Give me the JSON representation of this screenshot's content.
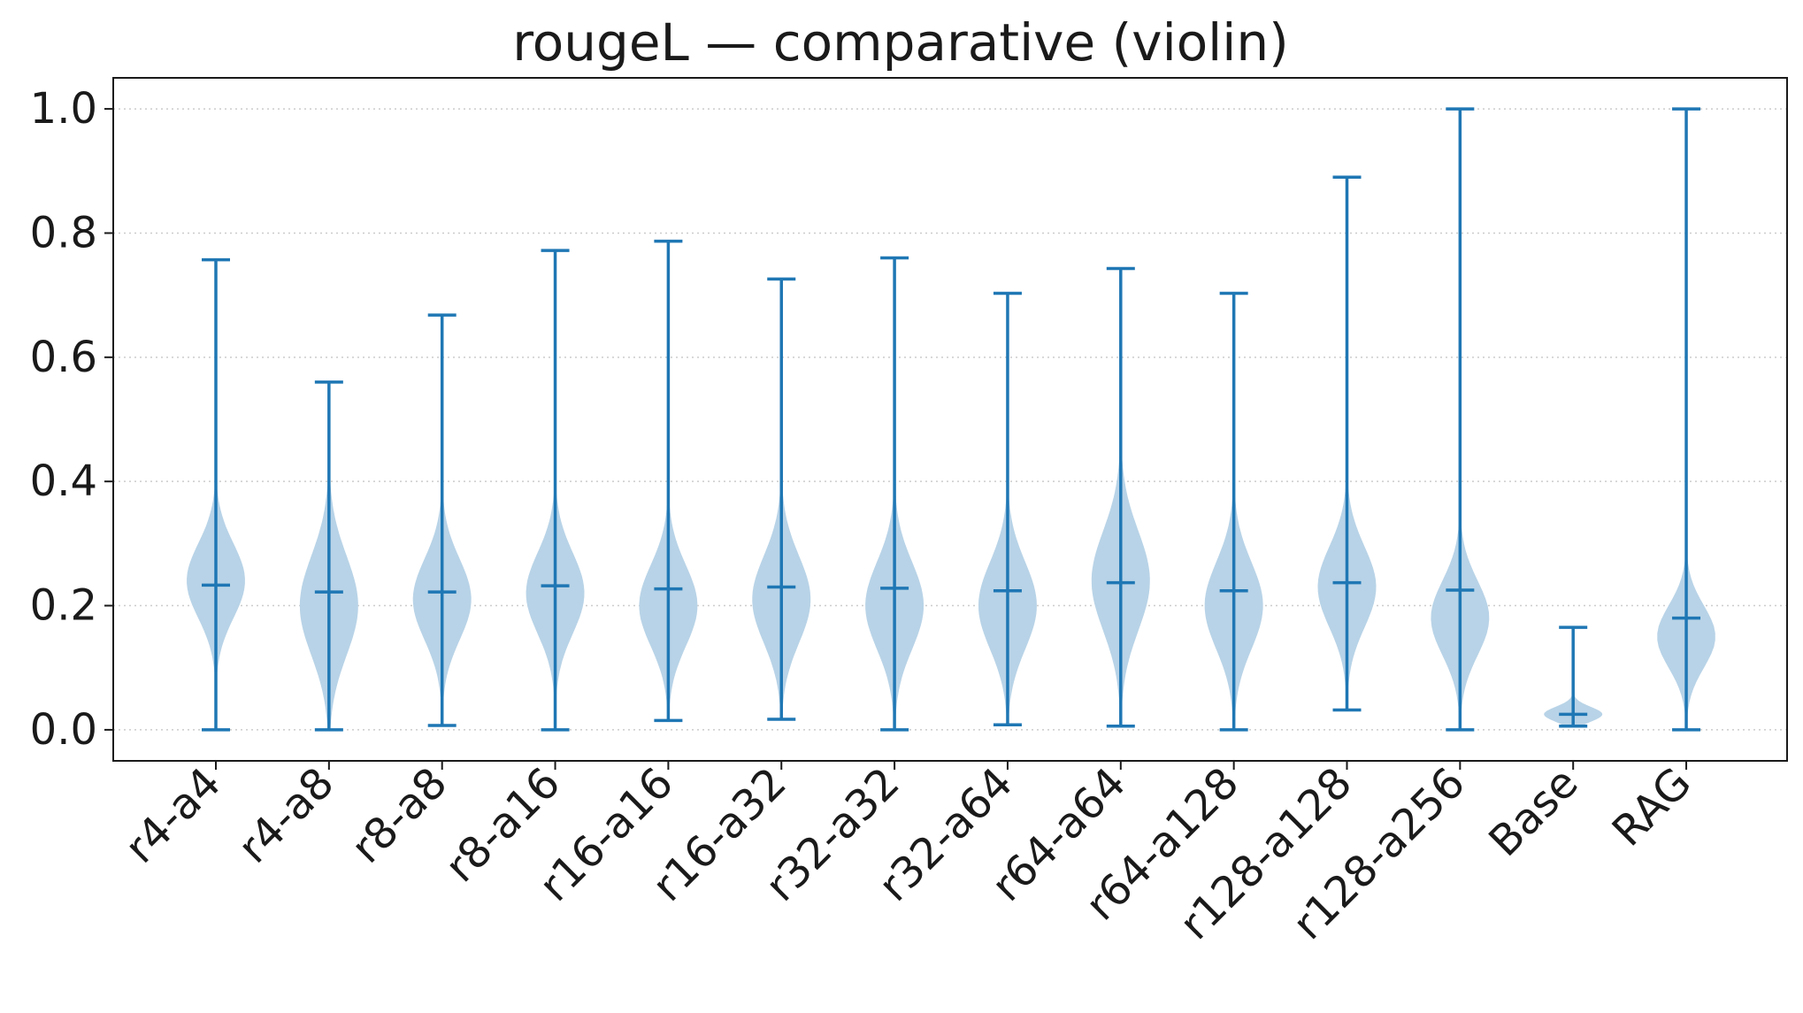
{
  "chart_data": {
    "type": "violin",
    "title": "rougeL — comparative (violin)",
    "xlabel": "",
    "ylabel": "",
    "ylim": [
      -0.05,
      1.05
    ],
    "yticks": [
      0.0,
      0.2,
      0.4,
      0.6,
      0.8,
      1.0
    ],
    "ytick_labels": [
      "0.0",
      "0.2",
      "0.4",
      "0.6",
      "0.8",
      "1.0"
    ],
    "grid": "y, dotted",
    "legend": "none",
    "colors": {
      "body": "#b8d3e7",
      "line": "#1f77b4",
      "grid": "#cccccc",
      "axis": "#1a1a1a"
    },
    "categories": [
      "r4-a4",
      "r4-a8",
      "r8-a8",
      "r8-a16",
      "r16-a16",
      "r16-a32",
      "r32-a32",
      "r32-a64",
      "r64-a64",
      "r64-a128",
      "r128-a128",
      "r128-a256",
      "Base",
      "RAG"
    ],
    "series": [
      {
        "category": "r4-a4",
        "min": 0.0,
        "max": 0.757,
        "median": 0.233,
        "mode": 0.24,
        "spread": 0.06
      },
      {
        "category": "r4-a8",
        "min": 0.0,
        "max": 0.56,
        "median": 0.222,
        "mode": 0.2,
        "spread": 0.08
      },
      {
        "category": "r8-a8",
        "min": 0.007,
        "max": 0.668,
        "median": 0.222,
        "mode": 0.21,
        "spread": 0.065
      },
      {
        "category": "r8-a16",
        "min": 0.0,
        "max": 0.772,
        "median": 0.232,
        "mode": 0.22,
        "spread": 0.065
      },
      {
        "category": "r16-a16",
        "min": 0.015,
        "max": 0.787,
        "median": 0.227,
        "mode": 0.2,
        "spread": 0.065
      },
      {
        "category": "r16-a32",
        "min": 0.017,
        "max": 0.726,
        "median": 0.23,
        "mode": 0.21,
        "spread": 0.07
      },
      {
        "category": "r32-a32",
        "min": 0.0,
        "max": 0.76,
        "median": 0.228,
        "mode": 0.2,
        "spread": 0.07
      },
      {
        "category": "r32-a64",
        "min": 0.008,
        "max": 0.703,
        "median": 0.224,
        "mode": 0.2,
        "spread": 0.07
      },
      {
        "category": "r64-a64",
        "min": 0.006,
        "max": 0.743,
        "median": 0.237,
        "mode": 0.24,
        "spread": 0.08
      },
      {
        "category": "r64-a128",
        "min": 0.0,
        "max": 0.703,
        "median": 0.224,
        "mode": 0.2,
        "spread": 0.07
      },
      {
        "category": "r128-a128",
        "min": 0.032,
        "max": 0.89,
        "median": 0.237,
        "mode": 0.23,
        "spread": 0.065
      },
      {
        "category": "r128-a256",
        "min": 0.0,
        "max": 1.0,
        "median": 0.225,
        "mode": 0.18,
        "spread": 0.06
      },
      {
        "category": "Base",
        "min": 0.006,
        "max": 0.165,
        "median": 0.025,
        "mode": 0.025,
        "spread": 0.012
      },
      {
        "category": "RAG",
        "min": 0.0,
        "max": 1.0,
        "median": 0.18,
        "mode": 0.15,
        "spread": 0.05
      }
    ]
  }
}
